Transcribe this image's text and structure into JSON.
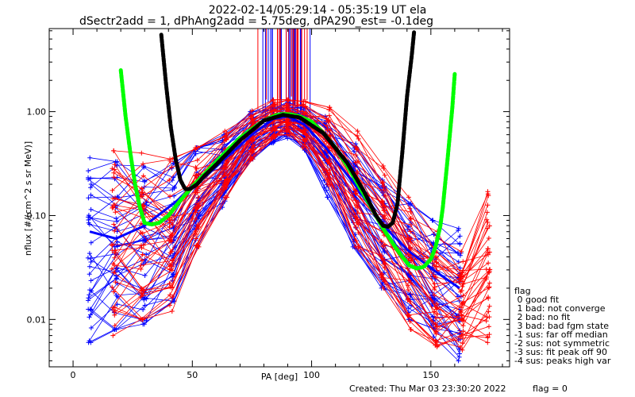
{
  "chart_data": {
    "type": "line",
    "title": "2022-02-14/05:29:14 - 05:35:19 UT ela",
    "subtitle": "dSectr2add = 1, dPhAng2add = 5.75deg, dPA290_est=  -0.1deg",
    "xlabel": "PA [deg]",
    "ylabel": "nflux [#/(cm^2 s sr MeV)]",
    "xlim": [
      -10,
      183
    ],
    "ylim": [
      0.0035,
      6.3
    ],
    "yscale": "log",
    "xticks": [
      0,
      50,
      100,
      150
    ],
    "yticks": [
      {
        "v": 0.01,
        "label": "0.01"
      },
      {
        "v": 0.1,
        "label": "0.10"
      },
      {
        "v": 1,
        "label": "1.00"
      }
    ],
    "colors": {
      "series_a": "#0000ff",
      "series_b": "#ff0000",
      "fit_green": "#00ff00",
      "fit_black": "#000000"
    },
    "series": [
      {
        "color": "blue",
        "x": [
          7,
          18,
          30,
          42,
          52,
          63,
          75,
          84,
          90,
          97,
          106,
          118,
          130,
          141,
          151,
          162
        ],
        "y": [
          0.07,
          0.06,
          0.08,
          0.13,
          0.2,
          0.34,
          0.6,
          0.85,
          0.9,
          0.75,
          0.45,
          0.2,
          0.08,
          0.045,
          0.03,
          0.02
        ],
        "y_low": [
          0.006,
          0.008,
          0.009,
          0.015,
          0.05,
          0.12,
          0.35,
          0.5,
          0.55,
          0.4,
          0.15,
          0.05,
          0.02,
          0.01,
          0.006,
          0.004
        ],
        "y_high": [
          0.36,
          0.33,
          0.3,
          0.32,
          0.45,
          0.6,
          1.0,
          1.2,
          1.25,
          1.1,
          0.9,
          0.5,
          0.22,
          0.13,
          0.09,
          0.075
        ]
      },
      {
        "color": "red",
        "x": [
          17,
          29,
          41,
          52,
          64,
          75,
          84,
          90,
          97,
          107,
          119,
          130,
          141,
          152,
          163,
          174
        ],
        "y": [
          0.06,
          0.07,
          0.1,
          0.2,
          0.35,
          0.6,
          0.85,
          0.9,
          0.8,
          0.5,
          0.2,
          0.07,
          0.03,
          0.014,
          0.01,
          0.012
        ],
        "y_low": [
          0.007,
          0.01,
          0.012,
          0.05,
          0.15,
          0.35,
          0.55,
          0.6,
          0.45,
          0.2,
          0.05,
          0.02,
          0.008,
          0.005,
          0.005,
          0.006
        ],
        "y_high": [
          0.42,
          0.4,
          0.35,
          0.45,
          0.65,
          1.05,
          1.3,
          1.3,
          1.25,
          1.1,
          0.65,
          0.3,
          0.15,
          0.07,
          0.045,
          0.17
        ]
      }
    ],
    "fits": [
      {
        "name": "green",
        "x": [
          20,
          22,
          24,
          26,
          28,
          30,
          33,
          36,
          40,
          45,
          50,
          55,
          60,
          65,
          70,
          75,
          80,
          85,
          88,
          91,
          95,
          100,
          105,
          110,
          115,
          120,
          125,
          130,
          135,
          138,
          141,
          144,
          147,
          150,
          152,
          154,
          155,
          157,
          159,
          160
        ],
        "y": [
          2.5,
          0.9,
          0.4,
          0.2,
          0.12,
          0.085,
          0.082,
          0.085,
          0.1,
          0.14,
          0.19,
          0.25,
          0.33,
          0.43,
          0.56,
          0.68,
          0.82,
          0.92,
          0.95,
          0.94,
          0.9,
          0.8,
          0.62,
          0.45,
          0.3,
          0.19,
          0.12,
          0.075,
          0.05,
          0.04,
          0.033,
          0.031,
          0.032,
          0.038,
          0.05,
          0.08,
          0.12,
          0.35,
          1.1,
          2.3
        ]
      },
      {
        "name": "black",
        "x": [
          37,
          39,
          41,
          43,
          45,
          47,
          49,
          52,
          55,
          60,
          70,
          80,
          88,
          95,
          105,
          115,
          122,
          127,
          130,
          132,
          134,
          136,
          138,
          140,
          142,
          143
        ],
        "y": [
          5.5,
          1.8,
          0.7,
          0.35,
          0.22,
          0.18,
          0.18,
          0.2,
          0.24,
          0.31,
          0.53,
          0.82,
          0.93,
          0.88,
          0.62,
          0.32,
          0.17,
          0.1,
          0.08,
          0.078,
          0.085,
          0.13,
          0.4,
          1.4,
          3.5,
          6.0
        ]
      }
    ],
    "spikes": {
      "x_from": 77,
      "x_to": 100,
      "count": 40
    }
  },
  "legend": {
    "title": "flag",
    "items": [
      " 0 good fit",
      " 1 bad: not converge",
      " 2 bad: no fit",
      " 3 bad: bad fgm state",
      "-1 sus: far off median",
      "-2 sus: not symmetric",
      "-3 sus: fit peak off 90",
      "-4 sus: peaks high var"
    ]
  },
  "footer": {
    "created": "Created: Thu Mar 03 23:30:20 2022",
    "flag": "flag = 0"
  }
}
